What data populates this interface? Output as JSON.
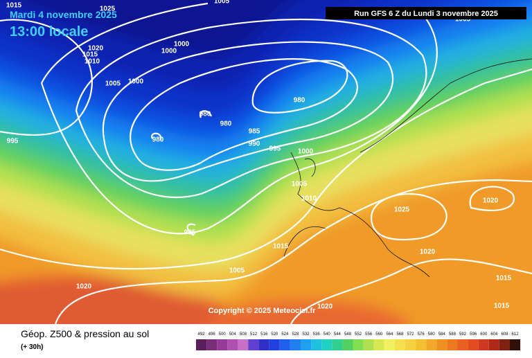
{
  "header": {
    "date": "Mardi 4 novembre 2025",
    "time": "13:00 locale",
    "run": "Run GFS 6 Z du Lundi 3 novembre 2025"
  },
  "copyright": "Copyright © 2025 Meteociel.fr",
  "footer": {
    "title": "Géop. Z500 & pression au sol",
    "lead": "(+ 30h)"
  },
  "isobar_labels": [
    "1015",
    "1025",
    "1005",
    "1020",
    "1015",
    "1010",
    "1000",
    "1000",
    "1005",
    "1000",
    "980",
    "980",
    "980",
    "980",
    "985",
    "990",
    "995",
    "1000",
    "995",
    "1005",
    "1010",
    "1025",
    "1020",
    "995",
    "1015",
    "1020",
    "1005",
    "1020",
    "1015",
    "1020",
    "1015",
    "1005"
  ],
  "legend": {
    "values": [
      492,
      496,
      500,
      504,
      508,
      512,
      516,
      520,
      524,
      528,
      532,
      536,
      540,
      544,
      548,
      552,
      556,
      560,
      564,
      568,
      572,
      576,
      580,
      584,
      588,
      592,
      596,
      600,
      604,
      608,
      612
    ],
    "colors": [
      "#5a1e5a",
      "#7a2e7a",
      "#963c96",
      "#b050b0",
      "#c870c8",
      "#6040d0",
      "#3030c8",
      "#2040e0",
      "#2060f0",
      "#2080f0",
      "#20a0f0",
      "#20c0e0",
      "#20d0c0",
      "#30d090",
      "#50d060",
      "#80e050",
      "#b0e050",
      "#d8e850",
      "#f0f060",
      "#f5e050",
      "#f5d040",
      "#f5c030",
      "#f2a828",
      "#f09020",
      "#ee7820",
      "#ea6020",
      "#e24c20",
      "#d03820",
      "#b02818",
      "#802010",
      "#301008"
    ]
  }
}
